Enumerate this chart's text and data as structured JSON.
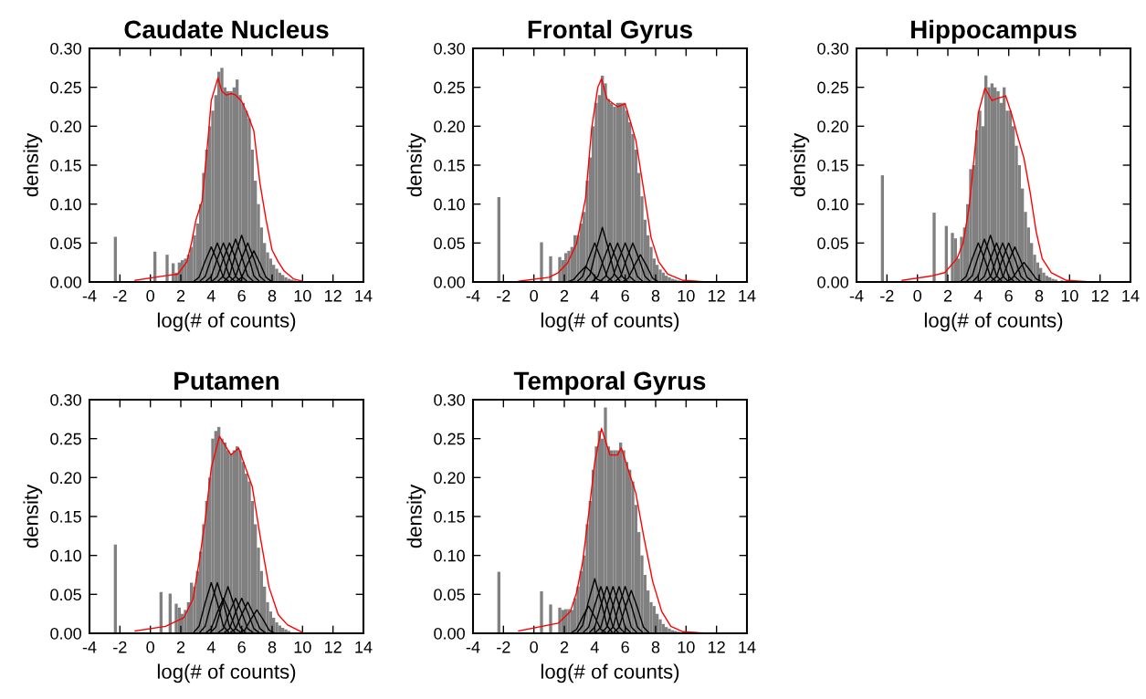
{
  "chart_data": [
    {
      "type": "histogram",
      "title": "Caudate Nucleus",
      "xlabel": "log(# of counts)",
      "ylabel": "density",
      "color": "#808080",
      "xlim": [
        -4,
        14
      ],
      "ylim": [
        0,
        0.3
      ],
      "xticks": [
        -4,
        -2,
        0,
        2,
        4,
        6,
        8,
        10,
        12,
        14
      ],
      "yticks": [
        {
          "value": 0,
          "label": "0.00"
        },
        {
          "value": 0.05,
          "label": "0.05"
        },
        {
          "value": 0.1,
          "label": "0.10"
        },
        {
          "value": 0.15,
          "label": "0.15"
        },
        {
          "value": 0.2,
          "label": "0.20"
        },
        {
          "value": 0.25,
          "label": "0.25"
        },
        {
          "value": 0.3,
          "label": "0.30"
        }
      ],
      "bins": [
        -2.4,
        -2.2,
        -2.0,
        -1.8,
        -1.6,
        -1.4,
        -1.2,
        -1.0,
        -0.8,
        -0.6,
        -0.4,
        -0.2,
        0,
        0.2,
        0.4,
        0.6,
        0.8,
        1.0,
        1.2,
        1.4,
        1.6,
        1.8,
        2.0,
        2.2,
        2.4,
        2.6,
        2.8,
        3.0,
        3.2,
        3.4,
        3.6,
        3.8,
        4.0,
        4.2,
        4.4,
        4.6,
        4.8,
        5.0,
        5.2,
        5.4,
        5.6,
        5.8,
        6.0,
        6.2,
        6.4,
        6.6,
        6.8,
        7.0,
        7.2,
        7.4,
        7.6,
        7.8,
        8.0,
        8.2,
        8.4,
        8.6,
        8.8,
        9.0,
        9.2,
        9.4,
        9.6,
        9.8,
        10.0
      ],
      "values": [
        0.058,
        0,
        0,
        0,
        0,
        0,
        0,
        0,
        0,
        0,
        0,
        0,
        0,
        0.039,
        0,
        0,
        0,
        0.035,
        0,
        0.024,
        0.012,
        0.025,
        0.028,
        0.03,
        0.035,
        0.045,
        0.06,
        0.075,
        0.1,
        0.14,
        0.17,
        0.2,
        0.22,
        0.24,
        0.27,
        0.275,
        0.25,
        0.245,
        0.245,
        0.25,
        0.26,
        0.24,
        0.23,
        0.22,
        0.21,
        0.17,
        0.13,
        0.1,
        0.07,
        0.05,
        0.038,
        0.03,
        0.022,
        0.017,
        0.012,
        0.009,
        0.006,
        0.004,
        0.003,
        0.002,
        0.001,
        0.001
      ],
      "series": [
        {
          "type": "line",
          "color": "#000000",
          "x": [
            2.8,
            3.2,
            3.6,
            4.0,
            4.4,
            4.8,
            5.2
          ],
          "values": [
            0,
            0.006,
            0.027,
            0.045,
            0.027,
            0.006,
            0
          ]
        },
        {
          "type": "line",
          "color": "#000000",
          "x": [
            3.2,
            3.6,
            4.0,
            4.4,
            4.8,
            5.2,
            5.6
          ],
          "values": [
            0,
            0.007,
            0.03,
            0.05,
            0.03,
            0.007,
            0
          ]
        },
        {
          "type": "line",
          "color": "#000000",
          "x": [
            3.6,
            4.0,
            4.4,
            4.8,
            5.2,
            5.6,
            6.0
          ],
          "values": [
            0,
            0.007,
            0.03,
            0.05,
            0.03,
            0.007,
            0
          ]
        },
        {
          "type": "line",
          "color": "#000000",
          "x": [
            4.0,
            4.4,
            4.8,
            5.2,
            5.6,
            6.0,
            6.4
          ],
          "values": [
            0,
            0.007,
            0.03,
            0.05,
            0.03,
            0.007,
            0
          ]
        },
        {
          "type": "line",
          "color": "#000000",
          "x": [
            4.4,
            4.8,
            5.2,
            5.6,
            6.0,
            6.4,
            6.8
          ],
          "values": [
            0,
            0.008,
            0.033,
            0.055,
            0.033,
            0.008,
            0
          ]
        },
        {
          "type": "line",
          "color": "#000000",
          "x": [
            4.8,
            5.2,
            5.6,
            6.0,
            6.4,
            6.8,
            7.2
          ],
          "values": [
            0,
            0.008,
            0.036,
            0.06,
            0.036,
            0.008,
            0
          ]
        },
        {
          "type": "line",
          "color": "#000000",
          "x": [
            5.2,
            5.6,
            6.0,
            6.4,
            6.8,
            7.2,
            7.6
          ],
          "values": [
            0,
            0.007,
            0.03,
            0.05,
            0.03,
            0.007,
            0
          ]
        },
        {
          "type": "line",
          "color": "#000000",
          "x": [
            5.6,
            6.0,
            6.4,
            6.8,
            7.2,
            7.6,
            8.0
          ],
          "values": [
            0,
            0.006,
            0.024,
            0.04,
            0.024,
            0.006,
            0
          ]
        },
        {
          "type": "line",
          "color": "#ff0000",
          "x": [
            -1.0,
            1.0,
            1.8,
            2.4,
            2.7,
            3.0,
            3.4,
            3.8,
            4.0,
            4.44,
            4.7,
            5.0,
            5.3,
            5.6,
            6.0,
            6.4,
            6.8,
            7.2,
            7.6,
            8.0,
            8.4,
            8.8,
            9.4,
            10.0
          ],
          "values": [
            0.002,
            0.008,
            0.01,
            0.026,
            0.05,
            0.08,
            0.104,
            0.186,
            0.233,
            0.262,
            0.245,
            0.24,
            0.242,
            0.24,
            0.232,
            0.215,
            0.194,
            0.127,
            0.08,
            0.041,
            0.026,
            0.014,
            0.004,
            0.001
          ]
        }
      ]
    },
    {
      "type": "histogram",
      "title": "Frontal Gyrus",
      "xlabel": "log(# of counts)",
      "ylabel": "density",
      "color": "#808080",
      "xlim": [
        -4,
        14
      ],
      "ylim": [
        0,
        0.3
      ],
      "xticks": [
        -4,
        -2,
        0,
        2,
        4,
        6,
        8,
        10,
        12,
        14
      ],
      "yticks": [
        {
          "value": 0,
          "label": "0.00"
        },
        {
          "value": 0.05,
          "label": "0.05"
        },
        {
          "value": 0.1,
          "label": "0.10"
        },
        {
          "value": 0.15,
          "label": "0.15"
        },
        {
          "value": 0.2,
          "label": "0.20"
        },
        {
          "value": 0.25,
          "label": "0.25"
        },
        {
          "value": 0.3,
          "label": "0.30"
        }
      ],
      "bins": [
        -2.4,
        -2.2,
        -2.0,
        -1.8,
        -1.6,
        -1.4,
        -1.2,
        -1.0,
        -0.8,
        -0.6,
        -0.4,
        -0.2,
        0,
        0.2,
        0.4,
        0.6,
        0.8,
        1.0,
        1.2,
        1.4,
        1.6,
        1.8,
        2.0,
        2.2,
        2.4,
        2.6,
        2.8,
        3.0,
        3.2,
        3.4,
        3.6,
        3.8,
        4.0,
        4.2,
        4.4,
        4.6,
        4.8,
        5.0,
        5.2,
        5.4,
        5.6,
        5.8,
        6.0,
        6.2,
        6.4,
        6.6,
        6.8,
        7.0,
        7.2,
        7.4,
        7.6,
        7.8,
        8.0,
        8.2,
        8.4,
        8.6,
        8.8,
        9.0,
        9.2,
        9.4,
        9.6,
        9.8,
        10.0
      ],
      "values": [
        0.109,
        0,
        0,
        0,
        0,
        0,
        0,
        0,
        0,
        0,
        0,
        0,
        0,
        0,
        0.051,
        0,
        0,
        0.033,
        0,
        0,
        0.032,
        0.028,
        0.037,
        0.04,
        0.045,
        0.06,
        0.06,
        0.075,
        0.09,
        0.13,
        0.16,
        0.2,
        0.23,
        0.24,
        0.265,
        0.255,
        0.235,
        0.23,
        0.225,
        0.23,
        0.23,
        0.23,
        0.22,
        0.205,
        0.19,
        0.17,
        0.14,
        0.11,
        0.08,
        0.06,
        0.045,
        0.03,
        0.022,
        0.016,
        0.012,
        0.008,
        0.006,
        0.004,
        0.003,
        0.002,
        0.001,
        0.001
      ],
      "series": [
        {
          "type": "line",
          "color": "#000000",
          "x": [
            2.2,
            2.6,
            3.0,
            3.4,
            3.8,
            4.2,
            4.6
          ],
          "values": [
            0,
            0.003,
            0.012,
            0.02,
            0.012,
            0.003,
            0
          ]
        },
        {
          "type": "line",
          "color": "#000000",
          "x": [
            2.8,
            3.2,
            3.6,
            4.0,
            4.4,
            4.8,
            5.2
          ],
          "values": [
            0,
            0.007,
            0.03,
            0.05,
            0.03,
            0.007,
            0
          ]
        },
        {
          "type": "line",
          "color": "#000000",
          "x": [
            3.3,
            3.7,
            4.1,
            4.5,
            4.9,
            5.3,
            5.7
          ],
          "values": [
            0,
            0.01,
            0.042,
            0.07,
            0.042,
            0.01,
            0
          ]
        },
        {
          "type": "line",
          "color": "#000000",
          "x": [
            3.8,
            4.2,
            4.6,
            5.0,
            5.4,
            5.8,
            6.2
          ],
          "values": [
            0,
            0.007,
            0.03,
            0.05,
            0.03,
            0.007,
            0
          ]
        },
        {
          "type": "line",
          "color": "#000000",
          "x": [
            4.3,
            4.7,
            5.1,
            5.5,
            5.9,
            6.3,
            6.7
          ],
          "values": [
            0,
            0.007,
            0.03,
            0.05,
            0.03,
            0.007,
            0
          ]
        },
        {
          "type": "line",
          "color": "#000000",
          "x": [
            4.8,
            5.2,
            5.6,
            6.0,
            6.4,
            6.8,
            7.2
          ],
          "values": [
            0,
            0.007,
            0.03,
            0.05,
            0.03,
            0.007,
            0
          ]
        },
        {
          "type": "line",
          "color": "#000000",
          "x": [
            5.3,
            5.7,
            6.1,
            6.5,
            6.9,
            7.3,
            7.7
          ],
          "values": [
            0,
            0.007,
            0.03,
            0.05,
            0.03,
            0.007,
            0
          ]
        },
        {
          "type": "line",
          "color": "#000000",
          "x": [
            5.8,
            6.2,
            6.6,
            7.0,
            7.4,
            7.8,
            8.2
          ],
          "values": [
            0,
            0.005,
            0.021,
            0.035,
            0.021,
            0.005,
            0
          ]
        },
        {
          "type": "line",
          "color": "#ff0000",
          "x": [
            -1.0,
            1.0,
            1.6,
            2.2,
            2.8,
            3.4,
            3.8,
            4.2,
            4.44,
            4.8,
            5.5,
            6.0,
            6.7,
            7.2,
            7.7,
            8.2,
            8.8,
            9.8,
            11.4
          ],
          "values": [
            0.001,
            0.006,
            0.012,
            0.024,
            0.049,
            0.108,
            0.198,
            0.25,
            0.261,
            0.235,
            0.225,
            0.229,
            0.182,
            0.12,
            0.057,
            0.026,
            0.01,
            0.002,
            0
          ]
        }
      ]
    },
    {
      "type": "histogram",
      "title": "Hippocampus",
      "xlabel": "log(# of counts)",
      "ylabel": "density",
      "color": "#808080",
      "xlim": [
        -4,
        14
      ],
      "ylim": [
        0,
        0.3
      ],
      "xticks": [
        -4,
        -2,
        0,
        2,
        4,
        6,
        8,
        10,
        12,
        14
      ],
      "yticks": [
        {
          "value": 0,
          "label": "0.00"
        },
        {
          "value": 0.05,
          "label": "0.05"
        },
        {
          "value": 0.1,
          "label": "0.10"
        },
        {
          "value": 0.15,
          "label": "0.15"
        },
        {
          "value": 0.2,
          "label": "0.20"
        },
        {
          "value": 0.25,
          "label": "0.25"
        },
        {
          "value": 0.3,
          "label": "0.30"
        }
      ],
      "bins": [
        -2.4,
        -2.2,
        -2.0,
        -1.8,
        -1.6,
        -1.4,
        -1.2,
        -1.0,
        -0.8,
        -0.6,
        -0.4,
        -0.2,
        0,
        0.2,
        0.4,
        0.6,
        0.8,
        1.0,
        1.2,
        1.4,
        1.6,
        1.8,
        2.0,
        2.2,
        2.4,
        2.6,
        2.8,
        3.0,
        3.2,
        3.4,
        3.6,
        3.8,
        4.0,
        4.2,
        4.4,
        4.6,
        4.8,
        5.0,
        5.2,
        5.4,
        5.6,
        5.8,
        6.0,
        6.2,
        6.4,
        6.6,
        6.8,
        7.0,
        7.2,
        7.4,
        7.6,
        7.8,
        8.0,
        8.2,
        8.4,
        8.6,
        8.8,
        9.0,
        9.2,
        9.4,
        9.6,
        9.8,
        10.0
      ],
      "values": [
        0.137,
        0,
        0,
        0,
        0,
        0,
        0,
        0,
        0,
        0,
        0,
        0,
        0,
        0,
        0,
        0,
        0,
        0.089,
        0,
        0,
        0,
        0.072,
        0,
        0.063,
        0.056,
        0.03,
        0.058,
        0.07,
        0.1,
        0.145,
        0.15,
        0.195,
        0.22,
        0.2,
        0.265,
        0.25,
        0.255,
        0.25,
        0.245,
        0.23,
        0.25,
        0.22,
        0.22,
        0.2,
        0.175,
        0.15,
        0.12,
        0.09,
        0.07,
        0.05,
        0.035,
        0.025,
        0.018,
        0.012,
        0.008,
        0.006,
        0.004,
        0.003,
        null,
        0.002,
        0.001,
        0
      ],
      "series": [
        {
          "type": "line",
          "color": "#000000",
          "x": [
            2.8,
            3.2,
            3.6,
            4.0,
            4.4,
            4.8,
            5.2
          ],
          "values": [
            0,
            0.007,
            0.03,
            0.05,
            0.03,
            0.007,
            0
          ]
        },
        {
          "type": "line",
          "color": "#000000",
          "x": [
            3.2,
            3.6,
            4.0,
            4.4,
            4.8,
            5.2,
            5.6
          ],
          "values": [
            0,
            0.008,
            0.033,
            0.055,
            0.033,
            0.008,
            0
          ]
        },
        {
          "type": "line",
          "color": "#000000",
          "x": [
            3.6,
            4.0,
            4.4,
            4.8,
            5.2,
            5.6,
            6.0
          ],
          "values": [
            0,
            0.008,
            0.036,
            0.06,
            0.036,
            0.008,
            0
          ]
        },
        {
          "type": "line",
          "color": "#000000",
          "x": [
            4.0,
            4.4,
            4.8,
            5.2,
            5.6,
            6.0,
            6.4
          ],
          "values": [
            0,
            0.007,
            0.03,
            0.05,
            0.03,
            0.007,
            0
          ]
        },
        {
          "type": "line",
          "color": "#000000",
          "x": [
            4.4,
            4.8,
            5.2,
            5.6,
            6.0,
            6.4,
            6.8
          ],
          "values": [
            0,
            0.007,
            0.03,
            0.05,
            0.03,
            0.007,
            0
          ]
        },
        {
          "type": "line",
          "color": "#000000",
          "x": [
            4.8,
            5.2,
            5.6,
            6.0,
            6.4,
            6.8,
            7.2
          ],
          "values": [
            0,
            0.007,
            0.03,
            0.05,
            0.03,
            0.007,
            0
          ]
        },
        {
          "type": "line",
          "color": "#000000",
          "x": [
            5.2,
            5.6,
            6.0,
            6.4,
            6.8,
            7.2,
            7.6
          ],
          "values": [
            0,
            0.006,
            0.027,
            0.045,
            0.027,
            0.006,
            0
          ]
        },
        {
          "type": "line",
          "color": "#000000",
          "x": [
            5.8,
            6.2,
            6.6,
            7.0,
            7.4,
            7.8,
            8.2
          ],
          "values": [
            0,
            0.004,
            0.015,
            0.025,
            0.015,
            0.004,
            0
          ]
        },
        {
          "type": "line",
          "color": "#ff0000",
          "x": [
            -1.0,
            1.0,
            1.8,
            2.6,
            3.0,
            3.4,
            3.8,
            4.0,
            4.44,
            4.9,
            5.3,
            5.8,
            6.2,
            6.6,
            7.0,
            7.4,
            7.8,
            8.2,
            8.8,
            9.8,
            11.4
          ],
          "values": [
            0.002,
            0.008,
            0.012,
            0.03,
            0.05,
            0.096,
            0.174,
            0.217,
            0.249,
            0.233,
            0.236,
            0.239,
            0.215,
            0.186,
            0.159,
            0.116,
            0.065,
            0.03,
            0.012,
            0.002,
            0
          ]
        }
      ]
    },
    {
      "type": "histogram",
      "title": "Putamen",
      "xlabel": "log(# of counts)",
      "ylabel": "density",
      "color": "#808080",
      "xlim": [
        -4,
        14
      ],
      "ylim": [
        0,
        0.3
      ],
      "xticks": [
        -4,
        -2,
        0,
        2,
        4,
        6,
        8,
        10,
        12,
        14
      ],
      "yticks": [
        {
          "value": 0,
          "label": "0.00"
        },
        {
          "value": 0.05,
          "label": "0.05"
        },
        {
          "value": 0.1,
          "label": "0.10"
        },
        {
          "value": 0.15,
          "label": "0.15"
        },
        {
          "value": 0.2,
          "label": "0.20"
        },
        {
          "value": 0.25,
          "label": "0.25"
        },
        {
          "value": 0.3,
          "label": "0.30"
        }
      ],
      "bins": [
        -2.4,
        -2.2,
        -2.0,
        -1.8,
        -1.6,
        -1.4,
        -1.2,
        -1.0,
        -0.8,
        -0.6,
        -0.4,
        -0.2,
        0,
        0.2,
        0.4,
        0.6,
        0.8,
        1.0,
        1.2,
        1.4,
        1.6,
        1.8,
        2.0,
        2.2,
        2.4,
        2.6,
        2.8,
        3.0,
        3.2,
        3.4,
        3.6,
        3.8,
        4.0,
        4.2,
        4.4,
        4.6,
        4.8,
        5.0,
        5.2,
        5.4,
        5.6,
        5.8,
        6.0,
        6.2,
        6.4,
        6.6,
        6.8,
        7.0,
        7.2,
        7.4,
        7.6,
        7.8,
        8.0,
        8.2,
        8.4,
        8.6,
        8.8,
        9.0,
        9.2,
        9.4,
        9.6,
        9.8,
        10.0
      ],
      "values": [
        0.114,
        0,
        0,
        0,
        0,
        0,
        0,
        0,
        0,
        0,
        0,
        0,
        0,
        0,
        0,
        0.053,
        0,
        0,
        0.051,
        0,
        0.038,
        0.033,
        0.025,
        0.03,
        0.04,
        0.065,
        0.06,
        0.08,
        0.105,
        0.14,
        0.17,
        0.2,
        0.25,
        0.26,
        0.265,
        0.25,
        0.245,
        0.235,
        0.23,
        0.235,
        0.24,
        0.235,
        0.22,
        0.205,
        0.195,
        0.17,
        0.14,
        0.11,
        0.08,
        0.06,
        0.04,
        0.028,
        0.02,
        0.014,
        0.01,
        0.007,
        0.005,
        0.003,
        null,
        0.001,
        0.001,
        0
      ],
      "series": [
        {
          "type": "line",
          "color": "#000000",
          "x": [
            2.8,
            3.2,
            3.6,
            4.0,
            4.4,
            4.8,
            5.2
          ],
          "values": [
            0,
            0.009,
            0.039,
            0.065,
            0.039,
            0.009,
            0
          ]
        },
        {
          "type": "line",
          "color": "#000000",
          "x": [
            3.2,
            3.6,
            4.0,
            4.4,
            4.8,
            5.2,
            5.6
          ],
          "values": [
            0,
            0.009,
            0.039,
            0.065,
            0.039,
            0.009,
            0
          ]
        },
        {
          "type": "line",
          "color": "#000000",
          "x": [
            3.6,
            4.0,
            4.4,
            4.8,
            5.2,
            5.6,
            6.0
          ],
          "values": [
            0,
            0.006,
            0.027,
            0.045,
            0.027,
            0.006,
            0
          ]
        },
        {
          "type": "line",
          "color": "#000000",
          "x": [
            3.9,
            4.3,
            4.7,
            5.1,
            5.5,
            5.9,
            6.3
          ],
          "values": [
            0,
            0.008,
            0.036,
            0.06,
            0.036,
            0.008,
            0
          ]
        },
        {
          "type": "line",
          "color": "#000000",
          "x": [
            4.4,
            4.8,
            5.2,
            5.6,
            6.0,
            6.4,
            6.8
          ],
          "values": [
            0,
            0.006,
            0.027,
            0.045,
            0.027,
            0.006,
            0
          ]
        },
        {
          "type": "line",
          "color": "#000000",
          "x": [
            4.8,
            5.2,
            5.6,
            6.0,
            6.4,
            6.8,
            7.2
          ],
          "values": [
            0,
            0.006,
            0.027,
            0.045,
            0.027,
            0.006,
            0
          ]
        },
        {
          "type": "line",
          "color": "#000000",
          "x": [
            5.2,
            5.6,
            6.0,
            6.4,
            6.8,
            7.2,
            7.6
          ],
          "values": [
            0,
            0.006,
            0.024,
            0.04,
            0.024,
            0.006,
            0
          ]
        },
        {
          "type": "line",
          "color": "#000000",
          "x": [
            5.8,
            6.2,
            6.6,
            7.0,
            7.4,
            7.8,
            8.2
          ],
          "values": [
            0,
            0.004,
            0.018,
            0.03,
            0.018,
            0.004,
            0
          ]
        },
        {
          "type": "line",
          "color": "#ff0000",
          "x": [
            -1.0,
            1.0,
            2.2,
            2.8,
            3.2,
            3.6,
            4.0,
            4.54,
            5.3,
            5.8,
            6.7,
            7.2,
            7.8,
            8.4,
            9.0,
            10.0
          ],
          "values": [
            0.003,
            0.009,
            0.02,
            0.044,
            0.091,
            0.145,
            0.212,
            0.253,
            0.229,
            0.238,
            0.188,
            0.126,
            0.059,
            0.024,
            0.011,
            0.001
          ]
        }
      ]
    },
    {
      "type": "histogram",
      "title": "Temporal Gyrus",
      "xlabel": "log(# of counts)",
      "ylabel": "density",
      "color": "#808080",
      "xlim": [
        -4,
        14
      ],
      "ylim": [
        0,
        0.3
      ],
      "xticks": [
        -4,
        -2,
        0,
        2,
        4,
        6,
        8,
        10,
        12,
        14
      ],
      "yticks": [
        {
          "value": 0,
          "label": "0.00"
        },
        {
          "value": 0.05,
          "label": "0.05"
        },
        {
          "value": 0.1,
          "label": "0.10"
        },
        {
          "value": 0.15,
          "label": "0.15"
        },
        {
          "value": 0.2,
          "label": "0.20"
        },
        {
          "value": 0.25,
          "label": "0.25"
        },
        {
          "value": 0.3,
          "label": "0.30"
        }
      ],
      "bins": [
        -2.4,
        -2.2,
        -2.0,
        -1.8,
        -1.6,
        -1.4,
        -1.2,
        -1.0,
        -0.8,
        -0.6,
        -0.4,
        -0.2,
        0,
        0.2,
        0.4,
        0.6,
        0.8,
        1.0,
        1.2,
        1.4,
        1.6,
        1.8,
        2.0,
        2.2,
        2.4,
        2.6,
        2.8,
        3.0,
        3.2,
        3.4,
        3.6,
        3.8,
        4.0,
        4.2,
        4.4,
        4.6,
        4.8,
        5.0,
        5.2,
        5.4,
        5.6,
        5.8,
        6.0,
        6.2,
        6.4,
        6.6,
        6.8,
        7.0,
        7.2,
        7.4,
        7.6,
        7.8,
        8.0,
        8.2,
        8.4,
        8.6,
        8.8,
        9.0,
        9.2,
        9.4,
        9.6,
        9.8,
        10.0
      ],
      "values": [
        0.079,
        0,
        0,
        0,
        0,
        0,
        0,
        0,
        0,
        0,
        0,
        0,
        0,
        0,
        0.054,
        0,
        0,
        0.037,
        0,
        0,
        0.033,
        0.03,
        0.031,
        0.031,
        0.03,
        0.045,
        0.06,
        0.08,
        0.1,
        0.14,
        0.17,
        0.21,
        0.24,
        0.26,
        0.25,
        0.29,
        0.24,
        0.235,
        0.235,
        0.235,
        0.245,
        0.235,
        0.22,
        0.21,
        0.195,
        0.165,
        0.13,
        0.1,
        0.075,
        0.055,
        0.04,
        0.035,
        0.025,
        0.018,
        0.012,
        0.008,
        0.006,
        0.004,
        0.003,
        0.002,
        0.001,
        0
      ],
      "series": [
        {
          "type": "line",
          "color": "#000000",
          "x": [
            2.4,
            2.8,
            3.2,
            3.6,
            4.0,
            4.4,
            4.8
          ],
          "values": [
            0,
            0.005,
            0.021,
            0.035,
            0.021,
            0.005,
            0
          ]
        },
        {
          "type": "line",
          "color": "#000000",
          "x": [
            2.8,
            3.2,
            3.6,
            4.0,
            4.4,
            4.8,
            5.2
          ],
          "values": [
            0,
            0.01,
            0.042,
            0.07,
            0.042,
            0.01,
            0
          ]
        },
        {
          "type": "line",
          "color": "#000000",
          "x": [
            3.2,
            3.6,
            4.0,
            4.4,
            4.8,
            5.2,
            5.6
          ],
          "values": [
            0,
            0.008,
            0.036,
            0.06,
            0.036,
            0.008,
            0
          ]
        },
        {
          "type": "line",
          "color": "#000000",
          "x": [
            3.6,
            4.0,
            4.4,
            4.8,
            5.2,
            5.6,
            6.0
          ],
          "values": [
            0,
            0.008,
            0.036,
            0.06,
            0.036,
            0.008,
            0
          ]
        },
        {
          "type": "line",
          "color": "#000000",
          "x": [
            4.0,
            4.4,
            4.8,
            5.2,
            5.6,
            6.0,
            6.4
          ],
          "values": [
            0,
            0.008,
            0.036,
            0.06,
            0.036,
            0.008,
            0
          ]
        },
        {
          "type": "line",
          "color": "#000000",
          "x": [
            4.4,
            4.8,
            5.2,
            5.6,
            6.0,
            6.4,
            6.8
          ],
          "values": [
            0,
            0.008,
            0.036,
            0.06,
            0.036,
            0.008,
            0
          ]
        },
        {
          "type": "line",
          "color": "#000000",
          "x": [
            4.8,
            5.2,
            5.6,
            6.0,
            6.4,
            6.8,
            7.2
          ],
          "values": [
            0,
            0.008,
            0.036,
            0.06,
            0.036,
            0.008,
            0
          ]
        },
        {
          "type": "line",
          "color": "#000000",
          "x": [
            5.2,
            5.6,
            6.0,
            6.4,
            6.8,
            7.2,
            7.6
          ],
          "values": [
            0,
            0.008,
            0.033,
            0.055,
            0.033,
            0.008,
            0
          ]
        },
        {
          "type": "line",
          "color": "#ff0000",
          "x": [
            -1.0,
            1.6,
            2.4,
            2.8,
            3.2,
            3.6,
            4.0,
            4.44,
            5.0,
            5.5,
            5.74,
            6.7,
            7.2,
            7.8,
            8.4,
            9.0,
            9.8,
            11.4
          ],
          "values": [
            0.003,
            0.013,
            0.028,
            0.052,
            0.091,
            0.153,
            0.22,
            0.263,
            0.229,
            0.229,
            0.238,
            0.18,
            0.126,
            0.067,
            0.028,
            0.009,
            0.002,
            0
          ]
        }
      ]
    }
  ]
}
